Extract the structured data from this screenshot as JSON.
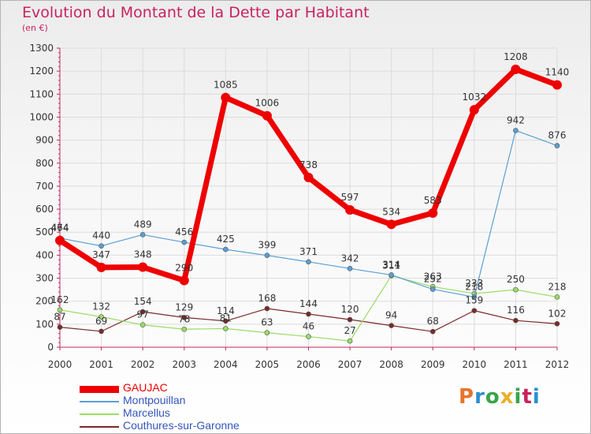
{
  "title": "Evolution du Montant de la Dette par Habitant",
  "subtitle": "(en €)",
  "logo": {
    "text": "Proxiti",
    "letter_colors": [
      "#e8732c",
      "#2a8fd0",
      "#3aa34a",
      "#e8b12a",
      "#3aa34a",
      "#c7235f",
      "#2a8fd0"
    ]
  },
  "chart_data": {
    "type": "line",
    "x": [
      "2000",
      "2001",
      "2002",
      "2003",
      "2004",
      "2005",
      "2006",
      "2007",
      "2008",
      "2009",
      "2010",
      "2011",
      "2012"
    ],
    "y_ticks": [
      "0",
      "100",
      "200",
      "300",
      "400",
      "500",
      "600",
      "700",
      "800",
      "900",
      "1000",
      "1100",
      "1200",
      "1300"
    ],
    "ylim": [
      0,
      1300
    ],
    "grid": true,
    "legend_position": "bottom-left",
    "series": [
      {
        "name": "GAUJAC",
        "color": "#ee0000",
        "values": [
          464,
          347,
          348,
          290,
          1085,
          1006,
          738,
          597,
          534,
          583,
          1032,
          1208,
          1140
        ],
        "labels": [
          "464",
          "347",
          "348",
          "290",
          "1085",
          "1006",
          "738",
          "597",
          "534",
          "583",
          "1032",
          "1208",
          "1140"
        ]
      },
      {
        "name": "Montpouillan",
        "color": "#5a9fd4",
        "values": [
          474,
          440,
          489,
          456,
          425,
          399,
          371,
          342,
          314,
          252,
          218,
          942,
          876
        ],
        "labels": [
          "474",
          "440",
          "489",
          "456",
          "425",
          "399",
          "371",
          "342",
          "314",
          "252",
          "218",
          "942",
          "876"
        ]
      },
      {
        "name": "Marcellus",
        "color": "#99dd66",
        "values": [
          162,
          132,
          97,
          78,
          81,
          63,
          46,
          27,
          311,
          263,
          233,
          250,
          218
        ],
        "labels": [
          "162",
          "132",
          "97",
          "78",
          "81",
          "63",
          "46",
          "27",
          "311",
          "263",
          "233",
          "250",
          "218"
        ]
      },
      {
        "name": "Couthures-sur-Garonne",
        "color": "#7a2a2a",
        "values": [
          87,
          69,
          154,
          129,
          114,
          168,
          144,
          120,
          94,
          68,
          159,
          116,
          102
        ],
        "labels": [
          "87",
          "69",
          "154",
          "129",
          "114",
          "168",
          "144",
          "120",
          "94",
          "68",
          "159",
          "116",
          "102"
        ]
      }
    ]
  }
}
